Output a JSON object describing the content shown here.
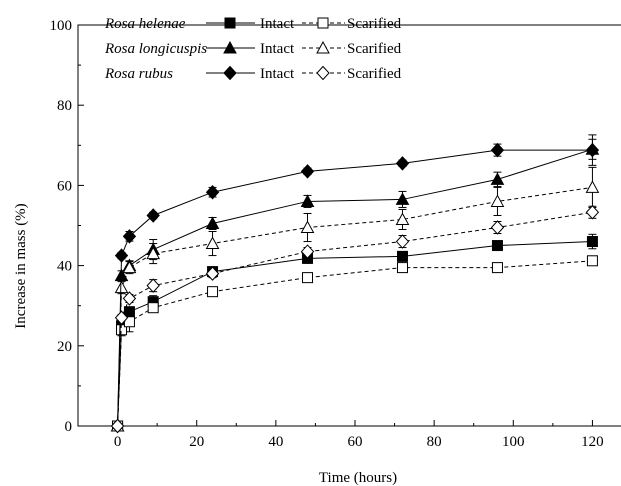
{
  "chart_data": {
    "type": "line",
    "xlabel": "Time (hours)",
    "ylabel": "Increase in mass (%)",
    "xlim": [
      -10,
      130
    ],
    "ylim": [
      0,
      100
    ],
    "xticks": [
      0,
      20,
      40,
      60,
      80,
      100,
      120
    ],
    "yticks": [
      0,
      20,
      40,
      60,
      80,
      100
    ],
    "legend_position": "top-left",
    "x": [
      0,
      1,
      3,
      9,
      24,
      48,
      72,
      96,
      120
    ],
    "species": [
      {
        "name": "Rosa helenae",
        "marker": "square",
        "series": [
          {
            "name": "Intact",
            "style": "solid",
            "filled": true,
            "values": [
              0,
              25.0,
              28.5,
              31.0,
              38.5,
              41.8,
              42.3,
              45.0,
              46.0
            ],
            "errors": [
              0,
              1.2,
              1.2,
              1.5,
              1.2,
              1.2,
              1.2,
              1.0,
              1.8
            ]
          },
          {
            "name": "Scarified",
            "style": "dashed",
            "filled": false,
            "values": [
              0,
              24.0,
              26.0,
              29.5,
              33.5,
              37.0,
              39.5,
              39.5,
              41.2
            ],
            "errors": [
              0,
              1.5,
              2.5,
              1.2,
              1.0,
              0.8,
              0.8,
              0.5,
              1.0
            ]
          }
        ]
      },
      {
        "name": "Rosa longicuspis",
        "marker": "triangle",
        "series": [
          {
            "name": "Intact",
            "style": "solid",
            "filled": true,
            "values": [
              0,
              37.5,
              40.0,
              44.0,
              50.5,
              56.0,
              56.5,
              61.5,
              69.0
            ],
            "errors": [
              0,
              1.2,
              1.2,
              2.5,
              1.5,
              1.5,
              2.0,
              1.8,
              2.5
            ]
          },
          {
            "name": "Scarified",
            "style": "dashed",
            "filled": false,
            "values": [
              0,
              34.5,
              39.5,
              43.0,
              45.5,
              49.5,
              51.5,
              56.0,
              59.5
            ],
            "errors": [
              0,
              1.5,
              1.5,
              2.5,
              3.0,
              3.5,
              2.5,
              3.5,
              5.0
            ]
          }
        ]
      },
      {
        "name": "Rosa rubus",
        "marker": "diamond",
        "series": [
          {
            "name": "Intact",
            "style": "solid",
            "filled": true,
            "values": [
              0,
              42.5,
              47.3,
              52.5,
              58.3,
              63.5,
              65.5,
              68.8,
              68.8
            ],
            "errors": [
              0,
              0.8,
              1.2,
              0.8,
              1.2,
              0.8,
              0.8,
              1.5,
              3.8
            ]
          },
          {
            "name": "Scarified",
            "style": "dashed",
            "filled": false,
            "values": [
              0,
              27.0,
              31.8,
              35.0,
              38.0,
              43.5,
              46.0,
              49.5,
              53.3
            ],
            "errors": [
              0,
              0.8,
              1.0,
              1.5,
              1.0,
              1.0,
              1.5,
              1.5,
              1.5
            ]
          }
        ]
      }
    ]
  }
}
